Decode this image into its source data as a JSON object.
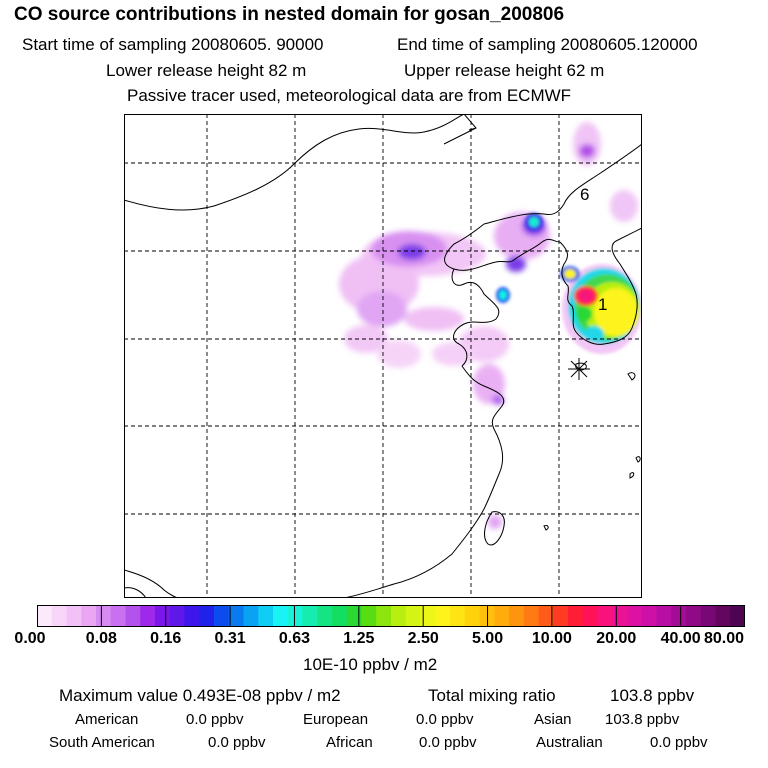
{
  "header": {
    "title": "CO  source contributions in nested domain for gosan_200806",
    "start_time": "Start time of sampling 20080605. 90000",
    "end_time": "End time of sampling 20080605.120000",
    "lower_height": "Lower release height   82 m",
    "upper_height": "Upper release height   62 m",
    "tracer_note": "Passive tracer used, meteorological data are from ECMWF"
  },
  "map": {
    "site_labels": [
      "6",
      "1"
    ],
    "gridlines": "dashed"
  },
  "colorbar": {
    "tick_labels": [
      "0.00",
      "0.08",
      "0.16",
      "0.31",
      "0.63",
      "1.25",
      "2.50",
      "5.00",
      "10.00",
      "20.00",
      "40.00",
      "80.00"
    ],
    "units": "10E-10 ppbv / m2",
    "colors": [
      "#fce9fc",
      "#f8d6fa",
      "#f2c2f6",
      "#eaa6f3",
      "#d78af0",
      "#c870ef",
      "#b453ec",
      "#9f29ea",
      "#7c17ea",
      "#5f18ea",
      "#3c16ea",
      "#1f22ea",
      "#0c4cee",
      "#0a7af0",
      "#0aa3f3",
      "#10cdf6",
      "#18f4f4",
      "#18f2d6",
      "#16ecb0",
      "#14e484",
      "#12de62",
      "#2ad834",
      "#58dc12",
      "#8ce60e",
      "#b8ef10",
      "#d4f414",
      "#ecf618",
      "#fcf41a",
      "#fee412",
      "#fed30e",
      "#fec00c",
      "#ffac0c",
      "#ff940e",
      "#ff7a14",
      "#ff5c1a",
      "#ff3b22",
      "#ff1d38",
      "#ff1258",
      "#f8127a",
      "#ec1296",
      "#de12a2",
      "#cc10a8",
      "#b80ea4",
      "#a40c98",
      "#900a88",
      "#780876",
      "#620660",
      "#4e0450"
    ]
  },
  "stats": {
    "max_label": "Maximum value  0.493E-08 ppbv / m2",
    "total_label": "Total mixing ratio",
    "total_value": "103.8 ppbv"
  },
  "regions": {
    "american": {
      "label": "American",
      "value": "0.0 ppbv"
    },
    "european": {
      "label": "European",
      "value": "0.0 ppbv"
    },
    "asian": {
      "label": "Asian",
      "value": "103.8 ppbv"
    },
    "south_american": {
      "label": "South American",
      "value": "0.0 ppbv"
    },
    "african": {
      "label": "African",
      "value": "0.0 ppbv"
    },
    "australian": {
      "label": "Australian",
      "value": "0.0 ppbv"
    }
  }
}
